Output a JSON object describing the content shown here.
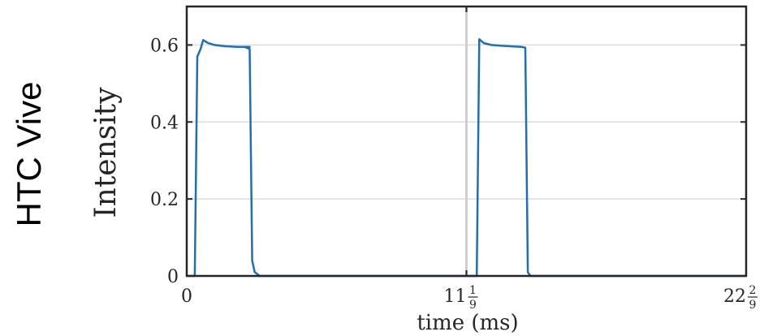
{
  "row_label": "HTC Vive",
  "chart_data": {
    "type": "line",
    "xlabel": "time (ms)",
    "ylabel": "Intensity",
    "xlim": [
      0,
      22.222
    ],
    "ylim": [
      0,
      0.7
    ],
    "x_ticks": [
      {
        "value": 0,
        "whole": "0",
        "num": "",
        "den": ""
      },
      {
        "value": 11.111,
        "whole": "11",
        "num": "1",
        "den": "9"
      },
      {
        "value": 22.222,
        "whole": "22",
        "num": "2",
        "den": "9"
      }
    ],
    "y_ticks": [
      {
        "value": 0,
        "label": "0"
      },
      {
        "value": 0.2,
        "label": "0.2"
      },
      {
        "value": 0.4,
        "label": "0.4"
      },
      {
        "value": 0.6,
        "label": "0.6"
      }
    ],
    "grid": true,
    "vertical_marker_x": 11.111,
    "line_color": "#1f6fb4",
    "series": [
      {
        "x": [
          0,
          0.32,
          0.42,
          0.55,
          0.65,
          0.85,
          1.1,
          1.5,
          2.0,
          2.5,
          2.35,
          2.5,
          2.6,
          2.7,
          2.9,
          3.0,
          11.111,
          11.4,
          11.5,
          11.52,
          11.62,
          11.8,
          12.1,
          12.5,
          13.0,
          13.3,
          13.45,
          13.45,
          13.55,
          13.65,
          14.0,
          22.222
        ],
        "y": [
          0,
          0,
          0.57,
          0.59,
          0.613,
          0.605,
          0.6,
          0.597,
          0.595,
          0.595,
          0.593,
          0.59,
          0.04,
          0.01,
          0,
          0,
          0,
          0,
          0,
          0,
          0.615,
          0.605,
          0.6,
          0.598,
          0.596,
          0.595,
          0.593,
          0.593,
          0.01,
          0,
          0,
          0
        ]
      }
    ]
  }
}
